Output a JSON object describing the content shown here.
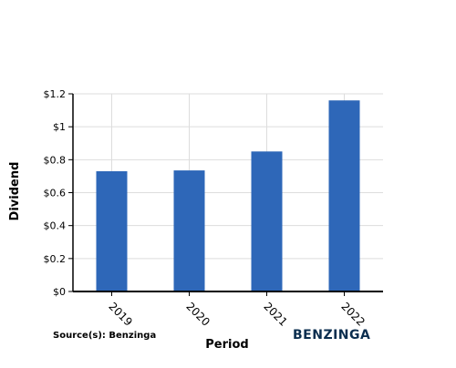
{
  "chart_data": {
    "type": "bar",
    "categories": [
      "2019",
      "2020",
      "2021",
      "2022"
    ],
    "values": [
      0.73,
      0.735,
      0.85,
      1.16
    ],
    "xlabel": "Period",
    "ylabel": "Dividend",
    "ylim": [
      0,
      1.2
    ],
    "yticks": [
      "$0",
      "$0.2",
      "$0.4",
      "$0.6",
      "$0.8",
      "$1",
      "$1.2"
    ],
    "grid": true,
    "bar_color": "#2e67b8"
  },
  "footer": {
    "source": "Source(s): Benzinga",
    "brand": "BENZINGA"
  }
}
